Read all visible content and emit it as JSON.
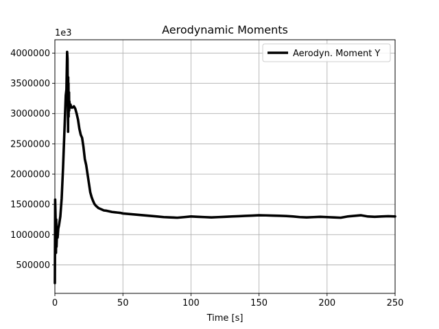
{
  "chart_data": {
    "type": "line",
    "title": "Aerodynamic Moments",
    "xlabel": "Time [s]",
    "ylabel": "",
    "y_offset_label": "1e3",
    "xlim": [
      0,
      250
    ],
    "ylim": [
      30000,
      4220000
    ],
    "grid": true,
    "legend_position": "top-right",
    "x_ticks": [
      0,
      50,
      100,
      150,
      200,
      250
    ],
    "x_tick_labels": [
      "0",
      "50",
      "100",
      "150",
      "200",
      "250"
    ],
    "y_ticks": [
      500000,
      1000000,
      1500000,
      2000000,
      2500000,
      3000000,
      3500000,
      4000000
    ],
    "y_tick_labels": [
      "500000",
      "1000000",
      "1500000",
      "2000000",
      "2500000",
      "3000000",
      "3500000",
      "4000000"
    ],
    "series": [
      {
        "name": "Aerodyn. Moment Y",
        "color": "#000000",
        "x": [
          0,
          0.2,
          0.4,
          0.6,
          0.8,
          1.0,
          1.2,
          1.5,
          2,
          2.5,
          3,
          4,
          5,
          6,
          7,
          8,
          8.5,
          9,
          9.3,
          9.5,
          9.7,
          9.8,
          9.9,
          10.0,
          10.1,
          10.2,
          10.3,
          10.4,
          10.5,
          10.7,
          11,
          11.5,
          12,
          13,
          14,
          15,
          16,
          17,
          18,
          19,
          20,
          21,
          22,
          23,
          24,
          25,
          26,
          27,
          28,
          29,
          30,
          32,
          34,
          36,
          38,
          40,
          42,
          44,
          46,
          48,
          50,
          55,
          60,
          65,
          70,
          75,
          80,
          85,
          90,
          95,
          100,
          105,
          110,
          115,
          120,
          125,
          130,
          135,
          140,
          145,
          150,
          155,
          160,
          165,
          170,
          175,
          180,
          185,
          190,
          195,
          200,
          205,
          210,
          215,
          220,
          225,
          230,
          235,
          240,
          245,
          250
        ],
        "values": [
          200000,
          1580000,
          1400000,
          1200000,
          700000,
          1250000,
          800000,
          1000000,
          950000,
          1100000,
          1150000,
          1300000,
          1600000,
          2100000,
          2700000,
          3300000,
          3400000,
          4020000,
          3900000,
          3200000,
          2700000,
          3600000,
          3000000,
          3500000,
          2950000,
          3300000,
          3100000,
          3350000,
          3050000,
          3200000,
          3100000,
          3150000,
          3100000,
          3100000,
          3120000,
          3080000,
          3000000,
          2900000,
          2750000,
          2650000,
          2600000,
          2450000,
          2250000,
          2150000,
          2000000,
          1850000,
          1700000,
          1620000,
          1560000,
          1510000,
          1480000,
          1440000,
          1420000,
          1400000,
          1395000,
          1385000,
          1375000,
          1370000,
          1365000,
          1360000,
          1350000,
          1340000,
          1330000,
          1320000,
          1310000,
          1300000,
          1290000,
          1285000,
          1280000,
          1290000,
          1300000,
          1295000,
          1290000,
          1285000,
          1290000,
          1295000,
          1300000,
          1305000,
          1310000,
          1315000,
          1320000,
          1318000,
          1315000,
          1312000,
          1308000,
          1300000,
          1290000,
          1285000,
          1290000,
          1295000,
          1290000,
          1285000,
          1280000,
          1300000,
          1310000,
          1320000,
          1300000,
          1295000,
          1300000,
          1305000,
          1300000
        ]
      }
    ]
  }
}
